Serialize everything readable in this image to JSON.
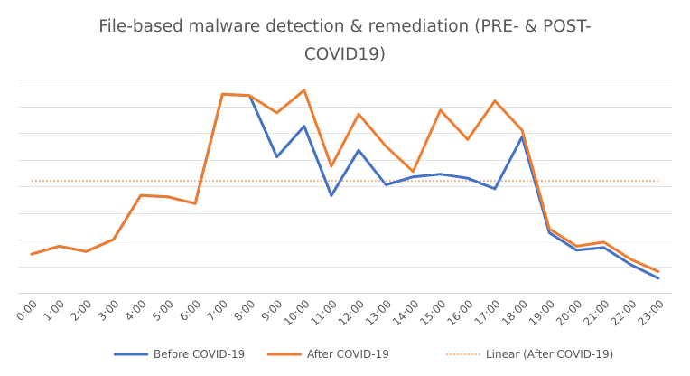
{
  "chart_data": {
    "type": "line",
    "title": "File-based malware detection & remediation (PRE- & POST-COVID19)",
    "title_lines": [
      "File-based malware detection & remediation (PRE- & POST-",
      "COVID19)"
    ],
    "xlabel": "",
    "ylabel": "",
    "categories": [
      "0:00",
      "1:00",
      "2:00",
      "3:00",
      "4:00",
      "5:00",
      "6:00",
      "7:00",
      "8:00",
      "9:00",
      "10:00",
      "11:00",
      "12:00",
      "13:00",
      "14:00",
      "15:00",
      "16:00",
      "17:00",
      "18:00",
      "19:00",
      "20:00",
      "21:00",
      "22:00",
      "23:00"
    ],
    "ylim": [
      0,
      8
    ],
    "y_gridlines": 8,
    "y_tick_labels_visible": false,
    "grid": true,
    "legend": "bottom",
    "series": [
      {
        "name": "Before COVID-19",
        "color": "#4472c4",
        "style": "solid",
        "values": [
          1.45,
          1.75,
          1.55,
          2.0,
          3.65,
          3.6,
          3.35,
          7.45,
          7.4,
          5.1,
          6.25,
          3.65,
          5.35,
          4.05,
          4.35,
          4.45,
          4.3,
          3.9,
          5.85,
          2.25,
          1.6,
          1.7,
          1.05,
          0.55
        ]
      },
      {
        "name": "After COVID-19",
        "color": "#ed7d31",
        "style": "solid",
        "values": [
          1.45,
          1.75,
          1.55,
          2.0,
          3.65,
          3.6,
          3.35,
          7.45,
          7.4,
          6.75,
          7.6,
          4.75,
          6.7,
          5.5,
          4.55,
          6.85,
          5.75,
          7.2,
          6.1,
          2.4,
          1.75,
          1.9,
          1.25,
          0.8
        ]
      },
      {
        "name": "Linear (After COVID-19)",
        "color": "#ed7d31",
        "style": "dotted",
        "values": [
          4.2,
          4.2,
          4.2,
          4.2,
          4.2,
          4.2,
          4.2,
          4.2,
          4.2,
          4.2,
          4.2,
          4.2,
          4.2,
          4.2,
          4.2,
          4.2,
          4.2,
          4.2,
          4.2,
          4.2,
          4.2,
          4.2,
          4.2,
          4.2
        ]
      }
    ]
  }
}
